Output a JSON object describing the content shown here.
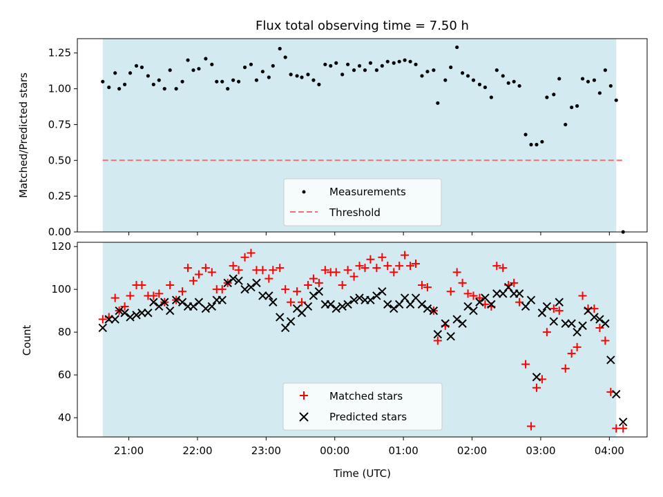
{
  "chart_data": [
    {
      "type": "scatter",
      "title": "Flux total observing time = 7.50 h",
      "ylabel": "Matched/Predicted stars",
      "xlabel": "",
      "ylim": [
        0,
        1.35
      ],
      "yticks": [
        "0.00",
        "0.25",
        "0.50",
        "0.75",
        "1.00",
        "1.25"
      ],
      "ytick_values": [
        0,
        0.25,
        0.5,
        0.75,
        1.0,
        1.25
      ],
      "grid": false,
      "legend_placement": "lower-center",
      "shaded_interval_hours": [
        20.62,
        28.1
      ],
      "shade_color": "#d3eaf0",
      "threshold": {
        "name": "Threshold",
        "value": 0.5,
        "x_range_hours": [
          20.62,
          28.2
        ],
        "color": "#f07070",
        "style": "dashed"
      },
      "series": [
        {
          "name": "Measurements",
          "color": "#000000",
          "marker": "dot",
          "x_hours": [
            20.62,
            20.71,
            20.8,
            20.86,
            20.94,
            21.02,
            21.11,
            21.19,
            21.28,
            21.36,
            21.44,
            21.52,
            21.6,
            21.69,
            21.78,
            21.86,
            21.94,
            22.02,
            22.12,
            22.21,
            22.28,
            22.36,
            22.44,
            22.52,
            22.6,
            22.69,
            22.78,
            22.86,
            22.95,
            23.04,
            23.1,
            23.2,
            23.28,
            23.36,
            23.45,
            23.52,
            23.61,
            23.69,
            23.77,
            23.86,
            23.94,
            24.02,
            24.11,
            24.19,
            24.28,
            24.36,
            24.44,
            24.52,
            24.61,
            24.69,
            24.77,
            24.86,
            24.94,
            25.02,
            25.1,
            25.18,
            25.27,
            25.35,
            25.44,
            25.5,
            25.61,
            25.69,
            25.78,
            25.86,
            25.94,
            26.02,
            26.11,
            26.19,
            26.28,
            26.36,
            26.45,
            26.53,
            26.61,
            26.69,
            26.78,
            26.86,
            26.94,
            27.02,
            27.09,
            27.19,
            27.27,
            27.36,
            27.45,
            27.53,
            27.61,
            27.69,
            27.78,
            27.86,
            27.94,
            28.02,
            28.1,
            28.2
          ],
          "y": [
            1.05,
            1.01,
            1.11,
            1.0,
            1.03,
            1.11,
            1.16,
            1.15,
            1.09,
            1.03,
            1.06,
            1.0,
            1.13,
            1.0,
            1.05,
            1.2,
            1.13,
            1.14,
            1.21,
            1.17,
            1.05,
            1.05,
            1.0,
            1.06,
            1.05,
            1.15,
            1.17,
            1.06,
            1.12,
            1.08,
            1.16,
            1.28,
            1.22,
            1.1,
            1.09,
            1.08,
            1.1,
            1.06,
            1.03,
            1.17,
            1.16,
            1.18,
            1.1,
            1.17,
            1.13,
            1.16,
            1.13,
            1.18,
            1.13,
            1.16,
            1.19,
            1.18,
            1.19,
            1.2,
            1.19,
            1.17,
            1.09,
            1.12,
            1.13,
            0.9,
            1.06,
            1.15,
            1.29,
            1.11,
            1.09,
            1.06,
            1.03,
            1.01,
            0.94,
            1.13,
            1.09,
            1.04,
            1.05,
            1.02,
            0.68,
            0.61,
            0.61,
            0.63,
            0.94,
            0.96,
            1.07,
            0.75,
            0.87,
            0.88,
            1.07,
            1.05,
            1.06,
            0.97,
            1.13,
            1.02,
            0.92,
            0.0
          ]
        }
      ]
    },
    {
      "type": "scatter",
      "title": "",
      "xlabel": "Time (UTC)",
      "ylabel": "Count",
      "ylim": [
        31,
        122
      ],
      "yticks": [
        "40",
        "60",
        "80",
        "100",
        "120"
      ],
      "ytick_values": [
        40,
        60,
        80,
        100,
        120
      ],
      "xlim_hours": [
        20.25,
        28.55
      ],
      "xticks": [
        "21:00",
        "22:00",
        "23:00",
        "00:00",
        "01:00",
        "02:00",
        "03:00",
        "04:00"
      ],
      "xtick_values_hours": [
        21,
        22,
        23,
        24,
        25,
        26,
        27,
        28
      ],
      "grid": false,
      "legend_placement": "lower-center",
      "shaded_interval_hours": [
        20.62,
        28.1
      ],
      "shade_color": "#d3eaf0",
      "series": [
        {
          "name": "Matched stars",
          "color": "#ff0000",
          "marker": "plus",
          "x_hours": [
            20.62,
            20.71,
            20.8,
            20.86,
            20.94,
            21.02,
            21.11,
            21.19,
            21.28,
            21.36,
            21.44,
            21.52,
            21.6,
            21.69,
            21.78,
            21.86,
            21.94,
            22.02,
            22.12,
            22.21,
            22.28,
            22.36,
            22.44,
            22.52,
            22.6,
            22.69,
            22.78,
            22.86,
            22.95,
            23.04,
            23.1,
            23.2,
            23.28,
            23.36,
            23.45,
            23.52,
            23.61,
            23.69,
            23.77,
            23.86,
            23.94,
            24.02,
            24.11,
            24.19,
            24.28,
            24.36,
            24.44,
            24.52,
            24.61,
            24.69,
            24.77,
            24.86,
            24.94,
            25.02,
            25.1,
            25.18,
            25.27,
            25.35,
            25.44,
            25.5,
            25.61,
            25.69,
            25.78,
            25.86,
            25.94,
            26.02,
            26.11,
            26.19,
            26.28,
            26.36,
            26.45,
            26.53,
            26.61,
            26.69,
            26.78,
            26.86,
            26.94,
            27.02,
            27.09,
            27.19,
            27.27,
            27.36,
            27.45,
            27.53,
            27.61,
            27.69,
            27.78,
            27.86,
            27.94,
            28.02,
            28.1,
            28.2
          ],
          "y": [
            86,
            87,
            96,
            90,
            92,
            97,
            102,
            102,
            97,
            97,
            98,
            94,
            102,
            95,
            99,
            110,
            104,
            107,
            110,
            108,
            100,
            100,
            103,
            111,
            109,
            115,
            117,
            109,
            109,
            105,
            109,
            110,
            100,
            94,
            99,
            94,
            102,
            105,
            103,
            109,
            108,
            108,
            102,
            109,
            106,
            111,
            110,
            114,
            110,
            115,
            111,
            108,
            111,
            116,
            111,
            112,
            102,
            101,
            90,
            76,
            83,
            99,
            108,
            103,
            98,
            97,
            96,
            93,
            92,
            111,
            110,
            102,
            103,
            94,
            65,
            36,
            54,
            58,
            80,
            91,
            90,
            63,
            70,
            73,
            97,
            91,
            91,
            82,
            76,
            52,
            35,
            35
          ]
        },
        {
          "name": "Predicted stars",
          "color": "#000000",
          "marker": "x",
          "x_hours": [
            20.62,
            20.71,
            20.8,
            20.86,
            20.94,
            21.02,
            21.11,
            21.19,
            21.28,
            21.36,
            21.44,
            21.52,
            21.6,
            21.69,
            21.78,
            21.86,
            21.94,
            22.02,
            22.12,
            22.21,
            22.28,
            22.36,
            22.44,
            22.52,
            22.6,
            22.69,
            22.78,
            22.86,
            22.95,
            23.04,
            23.1,
            23.2,
            23.28,
            23.36,
            23.45,
            23.52,
            23.61,
            23.69,
            23.77,
            23.86,
            23.94,
            24.02,
            24.11,
            24.19,
            24.28,
            24.36,
            24.44,
            24.52,
            24.61,
            24.69,
            24.77,
            24.86,
            24.94,
            25.02,
            25.1,
            25.18,
            25.27,
            25.35,
            25.44,
            25.5,
            25.61,
            25.69,
            25.78,
            25.86,
            25.94,
            26.02,
            26.11,
            26.19,
            26.28,
            26.36,
            26.45,
            26.53,
            26.61,
            26.69,
            26.78,
            26.86,
            26.94,
            27.02,
            27.09,
            27.19,
            27.27,
            27.36,
            27.45,
            27.53,
            27.61,
            27.69,
            27.78,
            27.86,
            27.94,
            28.02,
            28.1,
            28.2
          ],
          "y": [
            82,
            86,
            86,
            90,
            89,
            87,
            88,
            89,
            89,
            94,
            92,
            94,
            90,
            95,
            94,
            92,
            92,
            94,
            91,
            92,
            95,
            95,
            103,
            105,
            104,
            100,
            101,
            103,
            97,
            97,
            94,
            87,
            82,
            85,
            91,
            89,
            92,
            97,
            99,
            93,
            93,
            91,
            92,
            93,
            95,
            96,
            95,
            95,
            97,
            99,
            93,
            91,
            93,
            96,
            93,
            96,
            93,
            91,
            90,
            79,
            84,
            78,
            86,
            84,
            92,
            90,
            94,
            96,
            93,
            98,
            98,
            101,
            98,
            98,
            92,
            95,
            59,
            89,
            92,
            85,
            94,
            84,
            84,
            80,
            83,
            90,
            87,
            86,
            84,
            67,
            51,
            38
          ]
        }
      ]
    }
  ]
}
